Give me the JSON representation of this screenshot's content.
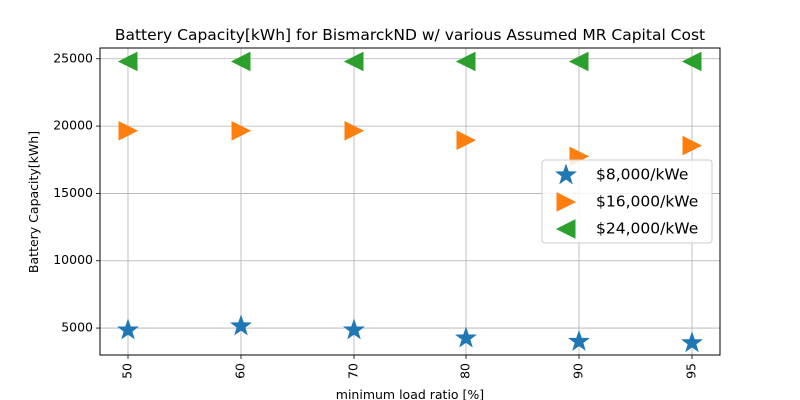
{
  "chart_data": {
    "type": "scatter",
    "title": "Battery Capacity[kWh] for BismarckND w/ various Assumed MR Capital Cost",
    "xlabel": "minimum load ratio [%]",
    "ylabel": "Battery Capacity[kWh]",
    "categories": [
      "50",
      "60",
      "70",
      "80",
      "90",
      "95"
    ],
    "ylim": [
      3000,
      25800
    ],
    "yticks": [
      5000,
      10000,
      15000,
      20000,
      25000
    ],
    "grid": true,
    "legend_position": "center-right",
    "series": [
      {
        "name": "$8,000/kWe",
        "marker": "star",
        "color": "#1f77b4",
        "values": [
          4850,
          5150,
          4850,
          4250,
          4000,
          3900
        ]
      },
      {
        "name": "$16,000/kWe",
        "marker": "triangle-right",
        "color": "#ff7f0e",
        "values": [
          19650,
          19650,
          19650,
          18950,
          17750,
          18550
        ]
      },
      {
        "name": "$24,000/kWe",
        "marker": "triangle-left",
        "color": "#2ca02c",
        "values": [
          24800,
          24800,
          24800,
          24800,
          24800,
          24800
        ]
      }
    ]
  }
}
